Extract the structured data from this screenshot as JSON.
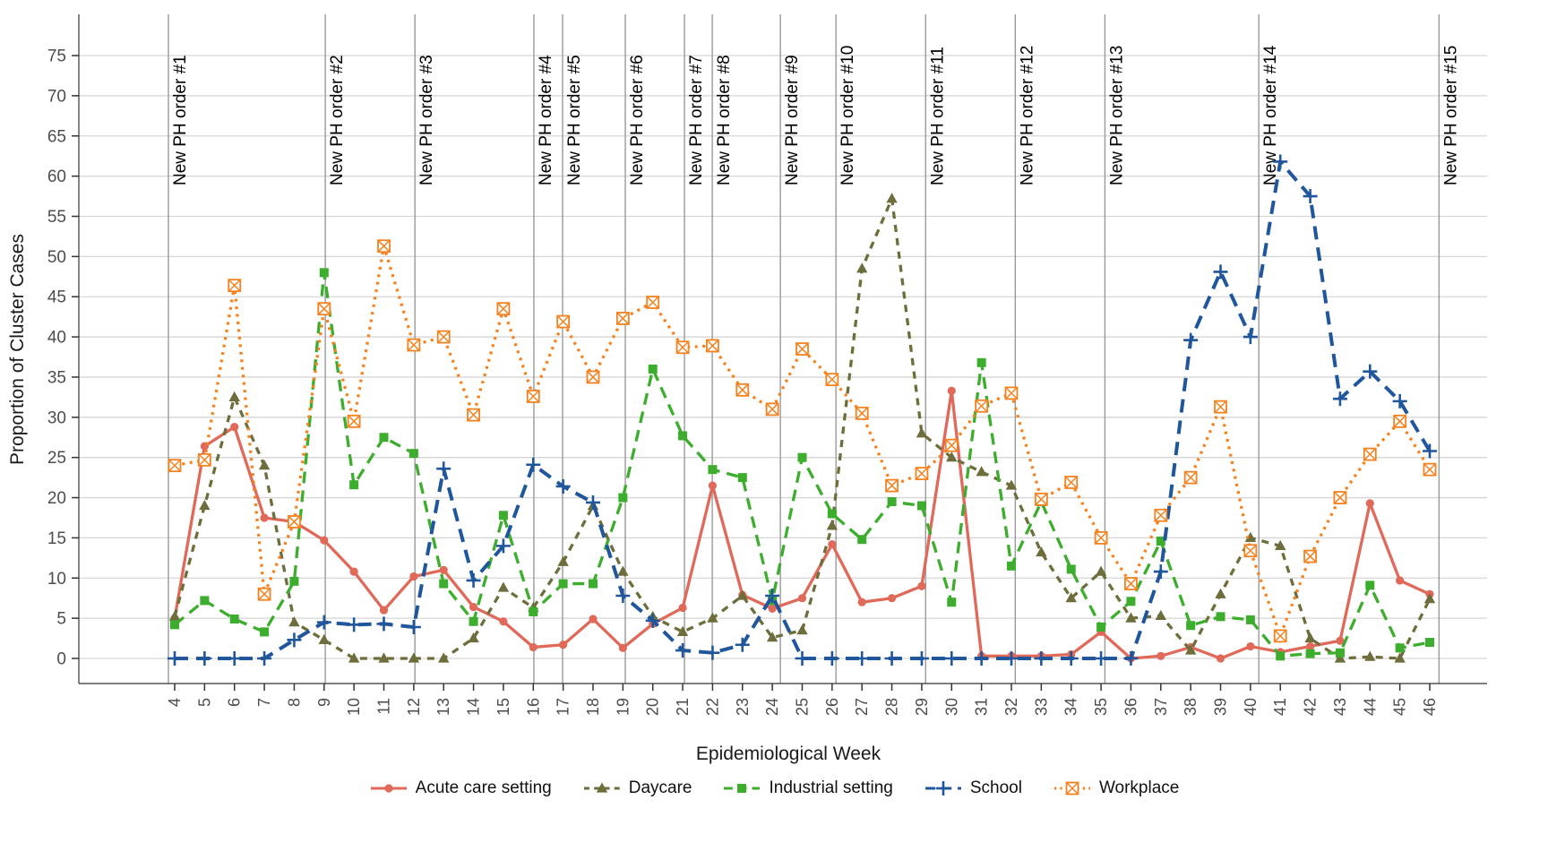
{
  "chart_data": {
    "type": "line",
    "title": "",
    "xlabel": "Epidemiological Week",
    "ylabel": "Proportion of Cluster Cases",
    "x_label_name": "week",
    "x": [
      4,
      5,
      6,
      7,
      8,
      9,
      10,
      11,
      12,
      13,
      14,
      15,
      16,
      17,
      18,
      19,
      20,
      21,
      22,
      23,
      24,
      25,
      26,
      27,
      28,
      29,
      30,
      31,
      32,
      33,
      34,
      35,
      36,
      37,
      38,
      39,
      40,
      41,
      42,
      43,
      44,
      45,
      46
    ],
    "y_ticks": [
      0,
      5,
      10,
      15,
      20,
      25,
      30,
      35,
      40,
      45,
      50,
      55,
      60,
      65,
      70,
      75
    ],
    "ylim": [
      0,
      78
    ],
    "xlim": [
      4,
      46
    ],
    "grid": "horizontal-major-only",
    "legend_position": "bottom",
    "series": [
      {
        "name": "Acute care setting",
        "color": "#E0695A",
        "linestyle": "solid",
        "marker": "circle",
        "values": [
          5.0,
          26.4,
          28.8,
          17.5,
          17.0,
          14.7,
          10.8,
          6.0,
          10.2,
          11.0,
          6.4,
          4.6,
          1.4,
          1.7,
          4.9,
          1.3,
          4.3,
          6.3,
          21.5,
          7.9,
          6.2,
          7.5,
          14.2,
          7.0,
          7.5,
          9.0,
          33.3,
          0.3,
          0.3,
          0.3,
          0.5,
          3.3,
          0,
          0.3,
          1.4,
          0,
          1.5,
          0.8,
          1.5,
          2.2,
          19.3,
          9.7,
          8.0
        ]
      },
      {
        "name": "Daycare",
        "color": "#6E6E3C",
        "linestyle": "dashed-short",
        "marker": "triangle",
        "values": [
          5.2,
          19.0,
          32.5,
          24.0,
          4.5,
          2.3,
          0,
          0,
          0,
          0,
          2.5,
          8.8,
          6.3,
          12.0,
          19.0,
          10.8,
          5.2,
          3.3,
          5.0,
          7.8,
          2.6,
          3.5,
          16.5,
          48.5,
          57.2,
          28.0,
          25.0,
          23.2,
          21.5,
          13.2,
          7.5,
          10.8,
          5.0,
          5.3,
          1.0,
          8.0,
          15.0,
          14.0,
          2.5,
          0,
          0.2,
          0,
          7.4
        ]
      },
      {
        "name": "Industrial setting",
        "color": "#3CAD2C",
        "linestyle": "dashed",
        "marker": "square",
        "values": [
          4.2,
          7.2,
          4.9,
          3.3,
          9.6,
          48.0,
          21.6,
          27.5,
          25.5,
          9.3,
          4.6,
          17.8,
          5.8,
          9.3,
          9.3,
          20.0,
          36.0,
          27.7,
          23.5,
          22.5,
          7.2,
          25.0,
          18.0,
          14.8,
          19.5,
          19.0,
          7.0,
          36.8,
          11.5,
          19.5,
          11.1,
          3.9,
          7.1,
          14.6,
          4.1,
          5.2,
          4.8,
          0.3,
          0.6,
          0.7,
          9.1,
          1.3,
          2.0
        ]
      },
      {
        "name": "School",
        "color": "#20569B",
        "linestyle": "longdash",
        "marker": "plus",
        "values": [
          0,
          0,
          0,
          0,
          2.3,
          4.5,
          4.2,
          4.3,
          3.9,
          23.6,
          9.7,
          14.0,
          24.1,
          21.4,
          19.4,
          7.8,
          4.7,
          1.0,
          0.7,
          1.7,
          7.8,
          0,
          0,
          0,
          0,
          0,
          0,
          0,
          0,
          0,
          0,
          0,
          0,
          10.8,
          39.6,
          48.1,
          40.0,
          61.8,
          57.5,
          32.3,
          35.7,
          32.0,
          25.8
        ]
      },
      {
        "name": "Workplace",
        "color": "#F5821F",
        "linestyle": "dotted",
        "marker": "crossed-square",
        "values": [
          24.0,
          24.7,
          46.4,
          8.0,
          17.0,
          43.5,
          29.5,
          51.3,
          39.0,
          40.0,
          30.3,
          43.5,
          32.6,
          41.9,
          35.0,
          42.3,
          44.3,
          38.7,
          38.9,
          33.4,
          31.0,
          38.5,
          34.7,
          30.5,
          21.5,
          23.0,
          26.5,
          31.4,
          33.0,
          19.8,
          21.9,
          15.0,
          9.3,
          17.8,
          22.5,
          31.3,
          13.4,
          2.8,
          12.7,
          20.0,
          25.4,
          29.5,
          23.5
        ]
      }
    ],
    "annotations": [
      {
        "label": "New PH order #1",
        "week": 3.79
      },
      {
        "label": "New PH order #2",
        "week": 9.04
      },
      {
        "label": "New PH order #3",
        "week": 12.04
      },
      {
        "label": "New PH order #4",
        "week": 16.02
      },
      {
        "label": "New PH order #5",
        "week": 16.98
      },
      {
        "label": "New PH order #6",
        "week": 19.08
      },
      {
        "label": "New PH order #7",
        "week": 21.06
      },
      {
        "label": "New PH order #8",
        "week": 21.99
      },
      {
        "label": "New PH order #9",
        "week": 24.27
      },
      {
        "label": "New PH order #10",
        "week": 26.13
      },
      {
        "label": "New PH order #11",
        "week": 29.13
      },
      {
        "label": "New PH order #12",
        "week": 32.13
      },
      {
        "label": "New PH order #13",
        "week": 35.13
      },
      {
        "label": "New PH order #14",
        "week": 40.28
      },
      {
        "label": "New PH order #15",
        "week": 46.31
      }
    ],
    "colors": {
      "grid": "#D6D6D6",
      "vline": "#9A9A9A",
      "axis_line": "#333333",
      "tick": "#333333",
      "tick_label": "#4D4D4D",
      "annotation_text": "#000000",
      "axis_title": "#1A1A1A"
    }
  }
}
